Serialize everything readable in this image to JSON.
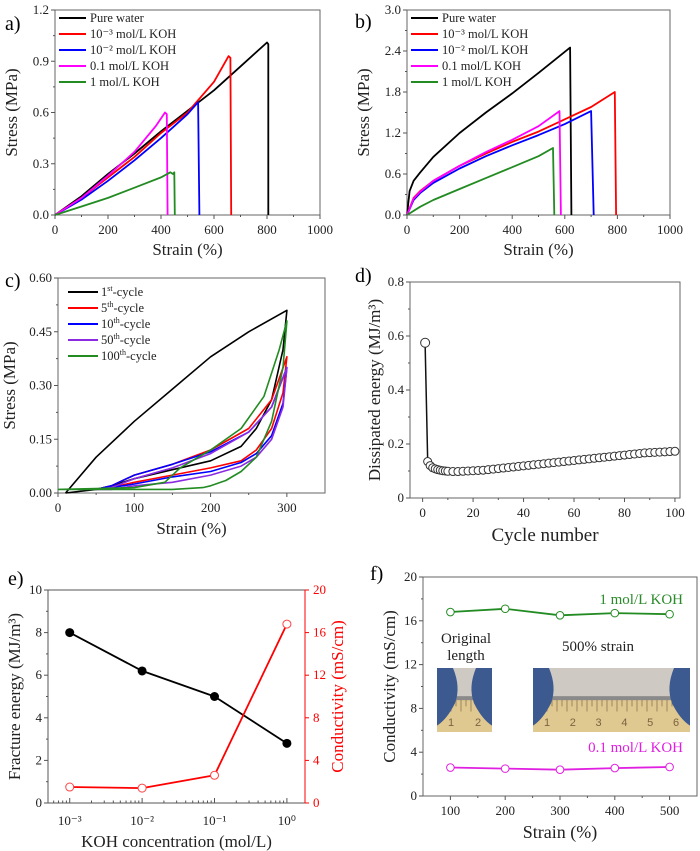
{
  "chart_data": [
    {
      "panel": "a)",
      "type": "line",
      "xlabel": "Strain (%)",
      "ylabel": "Stress (MPa)",
      "xlim": [
        0,
        1000
      ],
      "ylim": [
        0,
        1.2
      ],
      "xticks": [
        0,
        200,
        400,
        600,
        800,
        1000
      ],
      "yticks": [
        0.0,
        0.3,
        0.6,
        0.9,
        1.2
      ],
      "ytick_labels": [
        "0.0",
        "0.3",
        "0.6",
        "0.9",
        "1.2"
      ],
      "legend": "top-left",
      "series": [
        {
          "name": "Pure water",
          "color": "#000000",
          "x": [
            0,
            100,
            200,
            300,
            400,
            500,
            600,
            700,
            800,
            805,
            805
          ],
          "y": [
            0,
            0.11,
            0.24,
            0.36,
            0.49,
            0.61,
            0.73,
            0.87,
            1.01,
            1.0,
            0
          ]
        },
        {
          "name": "10⁻³ mol/L KOH",
          "color": "#ff0000",
          "x": [
            0,
            100,
            200,
            300,
            400,
            500,
            600,
            655,
            662,
            665
          ],
          "y": [
            0,
            0.1,
            0.22,
            0.34,
            0.48,
            0.6,
            0.78,
            0.93,
            0.92,
            0
          ]
        },
        {
          "name": "10⁻² mol/L KOH",
          "color": "#0000ff",
          "x": [
            0,
            100,
            200,
            300,
            400,
            500,
            540,
            545
          ],
          "y": [
            0,
            0.09,
            0.2,
            0.32,
            0.45,
            0.59,
            0.66,
            0
          ]
        },
        {
          "name": "0.1 mol/L KOH",
          "color": "#ff00ff",
          "x": [
            0,
            100,
            200,
            300,
            380,
            415,
            422,
            425
          ],
          "y": [
            0,
            0.1,
            0.23,
            0.37,
            0.52,
            0.6,
            0.59,
            0
          ]
        },
        {
          "name": "1 mol/L KOH",
          "color": "#228b22",
          "x": [
            0,
            100,
            200,
            300,
            400,
            435,
            445,
            450,
            452
          ],
          "y": [
            0,
            0.05,
            0.1,
            0.16,
            0.22,
            0.25,
            0.24,
            0.25,
            0
          ]
        }
      ]
    },
    {
      "panel": "b)",
      "type": "line",
      "xlabel": "Strain (%)",
      "ylabel": "Stress (MPa)",
      "xlim": [
        0,
        1000
      ],
      "ylim": [
        0,
        3.0
      ],
      "xticks": [
        0,
        200,
        400,
        600,
        800,
        1000
      ],
      "yticks": [
        0.0,
        0.6,
        1.2,
        1.8,
        2.4,
        3.0
      ],
      "ytick_labels": [
        "0.0",
        "0.6",
        "1.2",
        "1.8",
        "2.4",
        "3.0"
      ],
      "legend": "top-left",
      "series": [
        {
          "name": "Pure water",
          "color": "#000000",
          "x": [
            0,
            10,
            25,
            50,
            100,
            200,
            300,
            400,
            500,
            620,
            625
          ],
          "y": [
            0,
            0.35,
            0.5,
            0.62,
            0.85,
            1.2,
            1.5,
            1.78,
            2.08,
            2.45,
            0
          ]
        },
        {
          "name": "10⁻³ mol/L KOH",
          "color": "#ff0000",
          "x": [
            0,
            25,
            50,
            100,
            200,
            300,
            400,
            500,
            600,
            700,
            790,
            795
          ],
          "y": [
            0,
            0.25,
            0.35,
            0.5,
            0.72,
            0.9,
            1.07,
            1.22,
            1.4,
            1.58,
            1.8,
            0
          ]
        },
        {
          "name": "10⁻² mol/L KOH",
          "color": "#0000ff",
          "x": [
            0,
            25,
            50,
            100,
            200,
            300,
            400,
            500,
            600,
            700,
            710
          ],
          "y": [
            0,
            0.22,
            0.32,
            0.47,
            0.68,
            0.86,
            1.02,
            1.17,
            1.33,
            1.52,
            0
          ]
        },
        {
          "name": "0.1 mol/L KOH",
          "color": "#ff00ff",
          "x": [
            0,
            25,
            50,
            100,
            200,
            300,
            400,
            500,
            580,
            585
          ],
          "y": [
            0,
            0.24,
            0.34,
            0.5,
            0.72,
            0.92,
            1.1,
            1.3,
            1.52,
            0
          ]
        },
        {
          "name": "1 mol/L KOH",
          "color": "#228b22",
          "x": [
            0,
            50,
            100,
            200,
            300,
            400,
            500,
            555,
            560
          ],
          "y": [
            0,
            0.12,
            0.22,
            0.38,
            0.54,
            0.7,
            0.86,
            0.98,
            0
          ]
        }
      ]
    },
    {
      "panel": "c)",
      "type": "line",
      "xlabel": "Strain (%)",
      "ylabel": "Stress (MPa)",
      "xlim": [
        0,
        350
      ],
      "ylim": [
        0,
        0.6
      ],
      "xticks": [
        0,
        100,
        200,
        300
      ],
      "yticks": [
        0.0,
        0.15,
        0.3,
        0.45,
        0.6
      ],
      "ytick_labels": [
        "0.00",
        "0.15",
        "0.30",
        "0.45",
        "0.60"
      ],
      "legend": "top-left",
      "series": [
        {
          "name": "1st-cycle",
          "sup": "st",
          "base": "1",
          "suffix": "-cycle",
          "color": "#000000",
          "x": [
            10,
            50,
            100,
            150,
            200,
            250,
            300,
            295,
            280,
            260,
            240,
            200,
            150,
            100,
            70,
            50,
            10
          ],
          "y": [
            0,
            0.1,
            0.2,
            0.29,
            0.38,
            0.45,
            0.51,
            0.4,
            0.26,
            0.18,
            0.13,
            0.09,
            0.065,
            0.04,
            0.02,
            0.01,
            0
          ]
        },
        {
          "name": "5th-cycle",
          "sup": "th",
          "base": "5",
          "suffix": "-cycle",
          "color": "#ff0000",
          "x": [
            50,
            70,
            100,
            150,
            200,
            250,
            280,
            300,
            295,
            280,
            260,
            240,
            200,
            150,
            100,
            70,
            50
          ],
          "y": [
            0.01,
            0.02,
            0.05,
            0.08,
            0.12,
            0.18,
            0.26,
            0.38,
            0.28,
            0.18,
            0.12,
            0.09,
            0.07,
            0.05,
            0.03,
            0.015,
            0.01
          ]
        },
        {
          "name": "10th-cycle",
          "sup": "th",
          "base": "10",
          "suffix": "-cycle",
          "color": "#0000ff",
          "x": [
            50,
            70,
            100,
            150,
            200,
            250,
            280,
            300,
            295,
            280,
            260,
            240,
            200,
            150,
            100,
            70,
            50
          ],
          "y": [
            0.01,
            0.02,
            0.05,
            0.08,
            0.115,
            0.17,
            0.24,
            0.35,
            0.25,
            0.16,
            0.11,
            0.085,
            0.06,
            0.045,
            0.025,
            0.015,
            0.01
          ]
        },
        {
          "name": "50th-cycle",
          "sup": "th",
          "base": "50",
          "suffix": "-cycle",
          "color": "#8a2be2",
          "x": [
            50,
            70,
            100,
            150,
            200,
            250,
            280,
            300,
            295,
            280,
            260,
            240,
            200,
            150,
            100,
            70,
            50
          ],
          "y": [
            0.01,
            0.015,
            0.04,
            0.07,
            0.11,
            0.17,
            0.24,
            0.35,
            0.24,
            0.15,
            0.1,
            0.075,
            0.05,
            0.03,
            0.02,
            0.01,
            0.01
          ]
        },
        {
          "name": "100th-cycle",
          "sup": "th",
          "base": "100",
          "suffix": "-cycle",
          "color": "#228b22",
          "x": [
            0,
            100,
            140,
            160,
            200,
            240,
            270,
            290,
            300,
            295,
            280,
            260,
            240,
            220,
            200,
            190,
            150,
            100,
            0
          ],
          "y": [
            0.01,
            0.015,
            0.03,
            0.07,
            0.12,
            0.18,
            0.27,
            0.4,
            0.48,
            0.35,
            0.2,
            0.1,
            0.06,
            0.035,
            0.02,
            0.015,
            0.01,
            0.01,
            0.01
          ]
        }
      ]
    },
    {
      "panel": "d)",
      "type": "scatter",
      "xlabel": "Cycle number",
      "ylabel": "Dissipated energy (MJ/m³)",
      "xlim": [
        -5,
        102
      ],
      "ylim": [
        0,
        0.8
      ],
      "xticks": [
        0,
        20,
        40,
        60,
        80,
        100
      ],
      "yticks": [
        0,
        0.2,
        0.4,
        0.6,
        0.8
      ],
      "ytick_labels": [
        "0",
        "0.2",
        "0.4",
        "0.6",
        "0.8"
      ],
      "series": [
        {
          "name": "Dissipated energy",
          "color": "#000000",
          "marker": "open-circle",
          "x": [
            1,
            2,
            3,
            4,
            5,
            6,
            7,
            8,
            9,
            10,
            12,
            14,
            16,
            18,
            20,
            22,
            24,
            26,
            28,
            30,
            32,
            34,
            36,
            38,
            40,
            42,
            44,
            46,
            48,
            50,
            52,
            54,
            56,
            58,
            60,
            62,
            64,
            66,
            68,
            70,
            72,
            74,
            76,
            78,
            80,
            82,
            84,
            86,
            88,
            90,
            92,
            94,
            96,
            98,
            100
          ],
          "y": [
            0.575,
            0.135,
            0.12,
            0.112,
            0.108,
            0.105,
            0.103,
            0.101,
            0.1,
            0.099,
            0.098,
            0.098,
            0.099,
            0.1,
            0.101,
            0.102,
            0.103,
            0.105,
            0.107,
            0.109,
            0.111,
            0.113,
            0.115,
            0.117,
            0.119,
            0.121,
            0.123,
            0.125,
            0.127,
            0.129,
            0.131,
            0.133,
            0.135,
            0.137,
            0.139,
            0.141,
            0.143,
            0.145,
            0.147,
            0.149,
            0.151,
            0.153,
            0.155,
            0.157,
            0.159,
            0.161,
            0.163,
            0.165,
            0.167,
            0.168,
            0.169,
            0.17,
            0.171,
            0.172,
            0.173
          ]
        }
      ]
    },
    {
      "panel": "e)",
      "type": "line",
      "xlabel": "KOH concentration (mol/L)",
      "ylabel": "Fracture energy (MJ/m³)",
      "ylabel_right": "Conductivity (mS/cm)",
      "xscale": "log",
      "x": [
        0.001,
        0.01,
        0.1,
        1
      ],
      "xtick_labels": [
        "10⁻³",
        "10⁻²",
        "10⁻¹",
        "10⁰"
      ],
      "ylim": [
        0,
        10
      ],
      "ylim_right": [
        0,
        20
      ],
      "yticks": [
        0,
        2,
        4,
        6,
        8,
        10
      ],
      "yticks_right": [
        0,
        4,
        8,
        12,
        16,
        20
      ],
      "series": [
        {
          "name": "Fracture energy",
          "axis": "left",
          "color": "#000000",
          "marker": "filled-circle",
          "values": [
            8.0,
            6.2,
            5.0,
            2.8
          ]
        },
        {
          "name": "Conductivity",
          "axis": "right",
          "color": "#ff0000",
          "marker": "open-circle",
          "values": [
            1.5,
            1.4,
            2.6,
            16.8
          ]
        }
      ]
    },
    {
      "panel": "f)",
      "type": "line",
      "xlabel": "Strain (%)",
      "ylabel": "Conductivity  (mS/cm)",
      "xlim": [
        50,
        550
      ],
      "ylim": [
        0,
        20
      ],
      "xticks": [
        100,
        200,
        300,
        400,
        500
      ],
      "yticks": [
        0,
        4,
        8,
        12,
        16,
        20
      ],
      "annotations": [
        "Original length",
        "500% strain"
      ],
      "inset_images": [
        "original-length-photo",
        "500-percent-strain-photo"
      ],
      "ruler_marks_original": [
        "1",
        "2"
      ],
      "ruler_marks_stretched": [
        "1",
        "2",
        "3",
        "4",
        "5",
        "6"
      ],
      "series": [
        {
          "name": "1 mol/L KOH",
          "color": "#228b22",
          "marker": "open-circle",
          "x": [
            100,
            200,
            300,
            400,
            500
          ],
          "values": [
            16.8,
            17.1,
            16.5,
            16.7,
            16.6
          ]
        },
        {
          "name": "0.1 mol/L KOH",
          "color": "#e020e0",
          "marker": "open-circle",
          "x": [
            100,
            200,
            300,
            400,
            500
          ],
          "values": [
            2.6,
            2.5,
            2.4,
            2.55,
            2.65
          ]
        }
      ]
    }
  ],
  "labels": {
    "orig1": "Original",
    "orig2": "length",
    "strain500": "500% strain"
  }
}
